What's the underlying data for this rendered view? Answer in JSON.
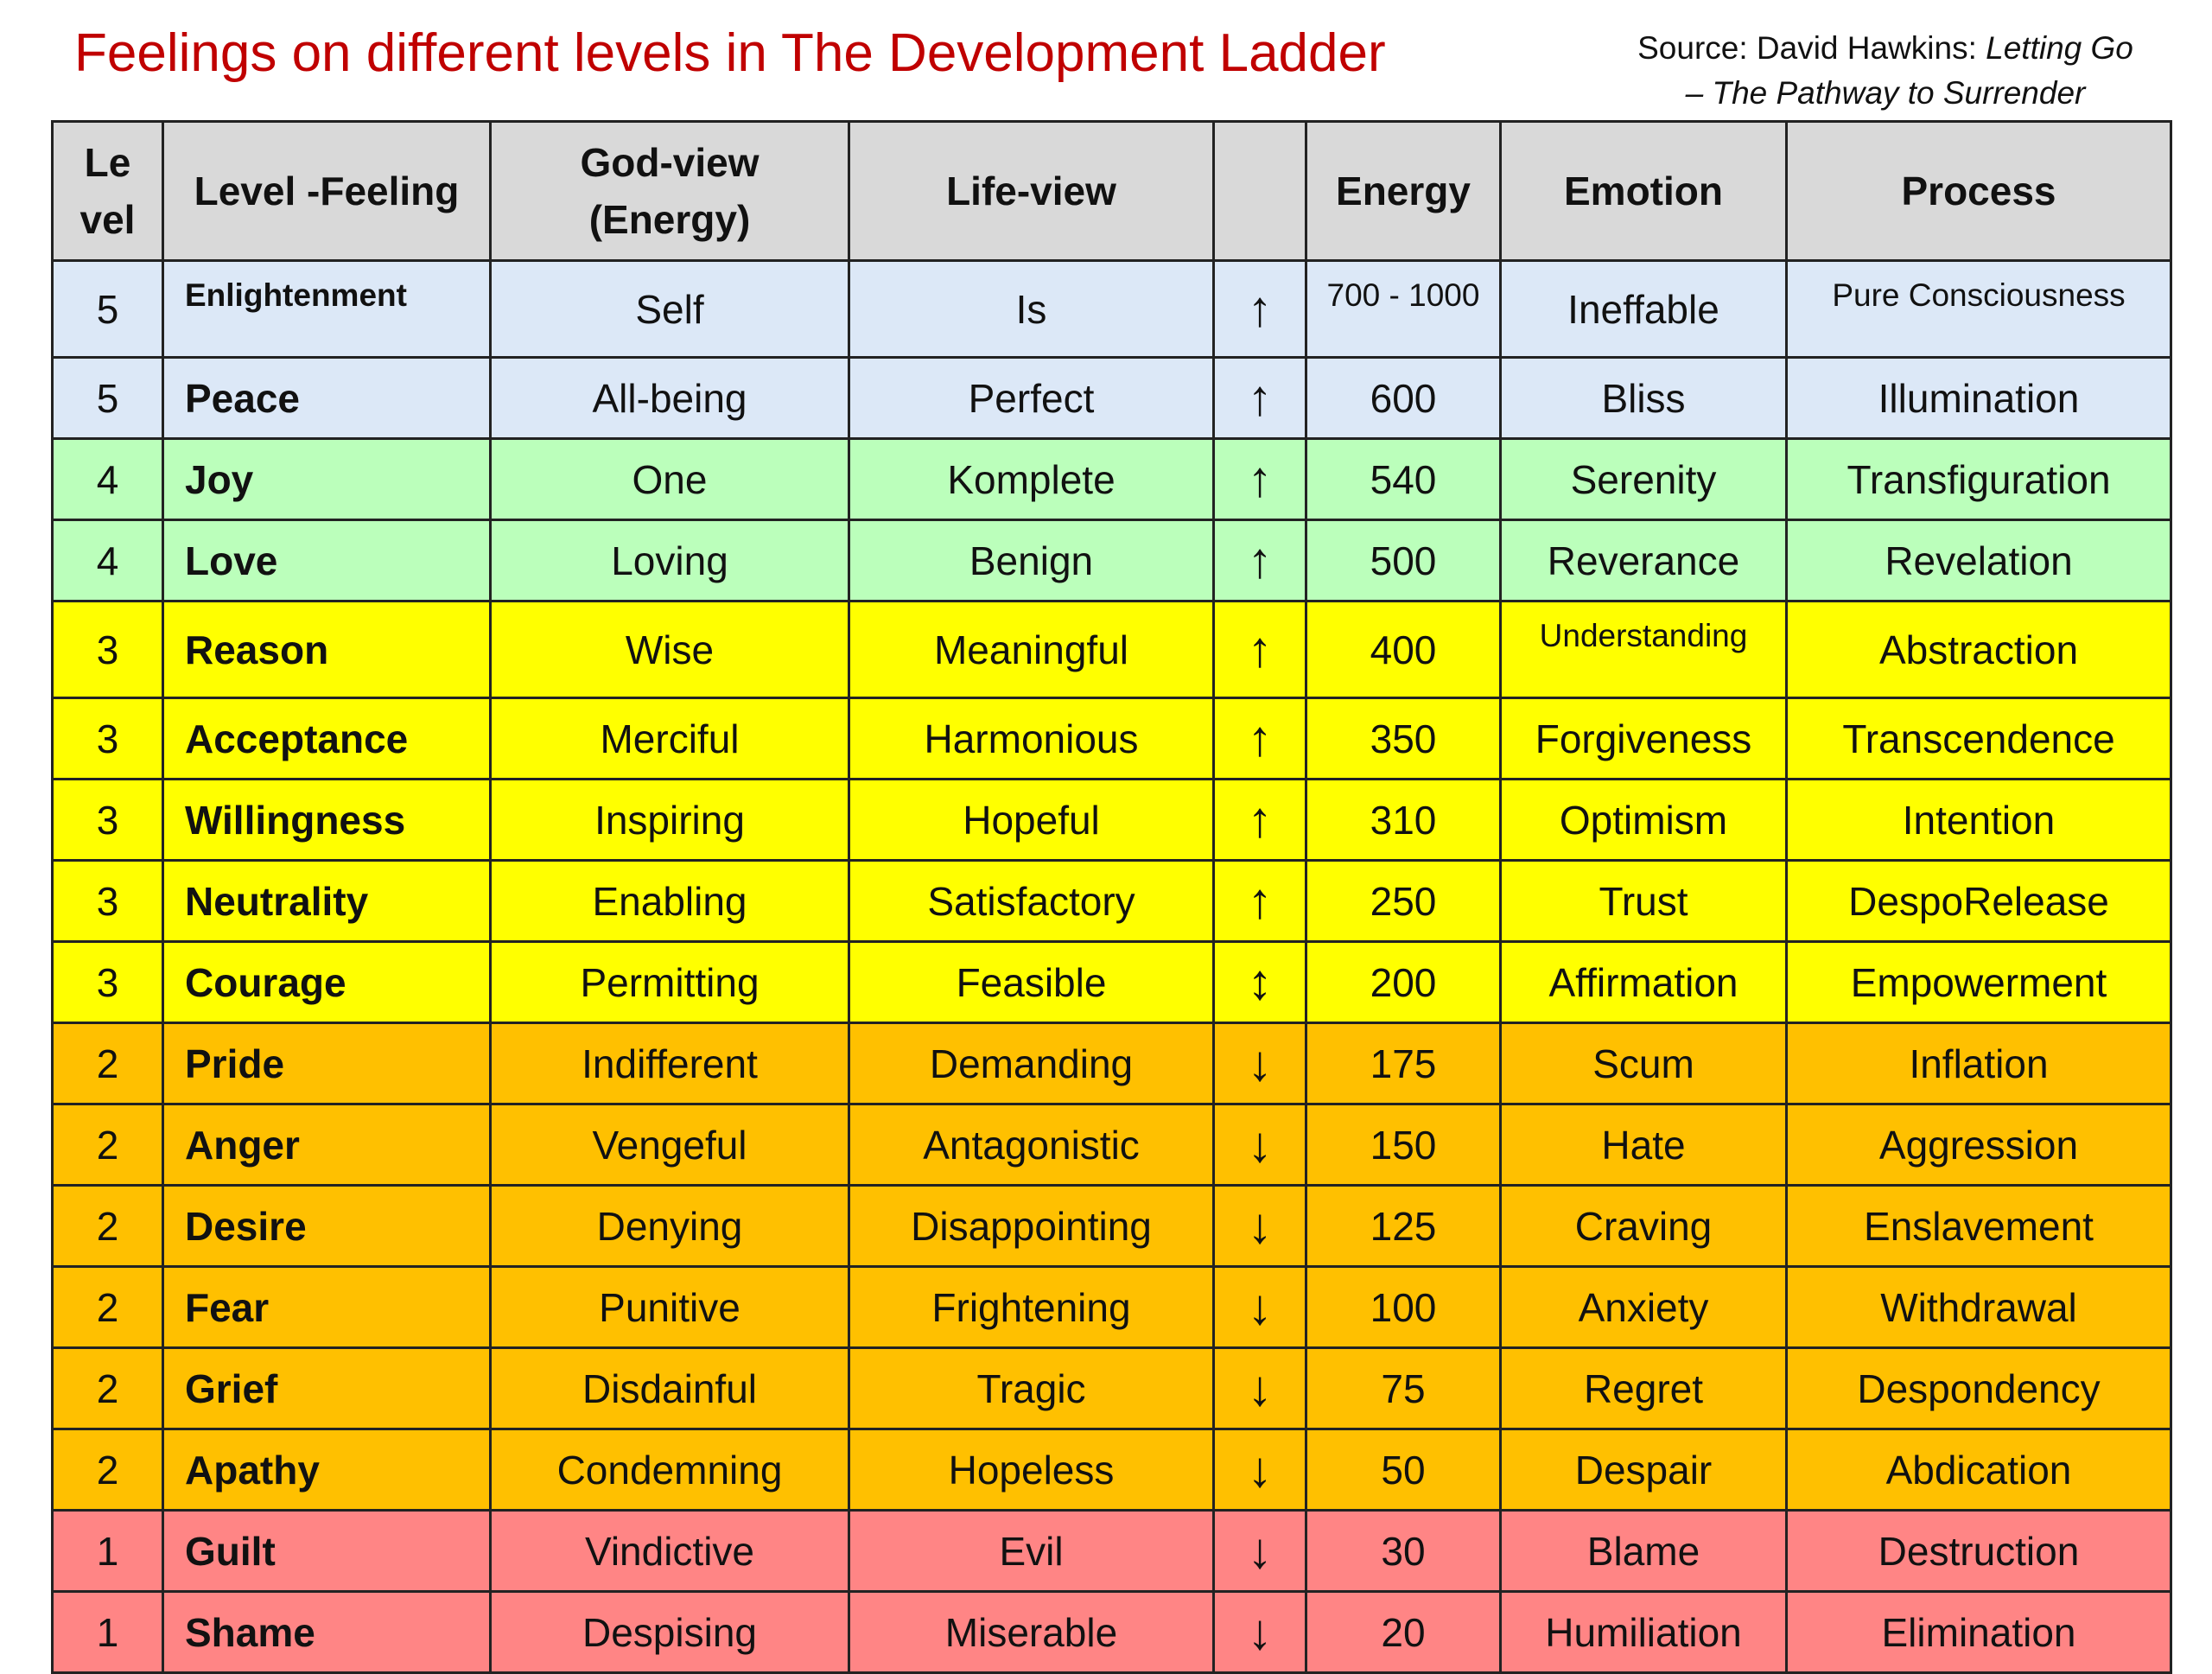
{
  "title": "Feelings on different levels in The Development Ladder",
  "source": {
    "line1": "Source: David Hawkins: ",
    "line1_italic": "Letting Go",
    "line2_italic": "– The Pathway to Surrender"
  },
  "table": {
    "header": [
      [
        "Le",
        "vel"
      ],
      [
        "Level -Feeling"
      ],
      [
        "God-view",
        "(Energy)"
      ],
      [
        "Life-view"
      ],
      null,
      [
        "Energy"
      ],
      [
        "Emotion"
      ],
      [
        "Process"
      ]
    ],
    "row_colors": {
      "5": "#dce8f7",
      "4": "#bbffbb",
      "3": "#ffff00",
      "2": "#ffc000",
      "1": "#ff8585"
    },
    "header_color": "#d9d9d9",
    "rows": [
      [
        5,
        "Enlightenment",
        "Self",
        "Is",
        "↑",
        "700 - 1000",
        "Ineffable",
        "Pure Consciousness"
      ],
      [
        5,
        "Peace",
        "All-being",
        "Perfect",
        "↑",
        600,
        "Bliss",
        "Illumination"
      ],
      [
        4,
        "Joy",
        "One",
        "Komplete",
        "↑",
        540,
        "Serenity",
        "Transfiguration"
      ],
      [
        4,
        "Love",
        "Loving",
        "Benign",
        "↑",
        500,
        "Reverance",
        "Revelation"
      ],
      [
        3,
        "Reason",
        "Wise",
        "Meaningful",
        "↑",
        400,
        "Understanding",
        "Abstraction"
      ],
      [
        3,
        "Acceptance",
        "Merciful",
        "Harmonious",
        "↑",
        350,
        "Forgiveness",
        "Transcendence"
      ],
      [
        3,
        "Willingness",
        "Inspiring",
        "Hopeful",
        "↑",
        310,
        "Optimism",
        "Intention"
      ],
      [
        3,
        "Neutrality",
        "Enabling",
        "Satisfactory",
        "↑",
        250,
        "Trust",
        "DespoRelease"
      ],
      [
        3,
        "Courage",
        "Permitting",
        "Feasible",
        "↕",
        200,
        "Affirmation",
        "Empowerment"
      ],
      [
        2,
        "Pride",
        "Indifferent",
        "Demanding",
        "↓",
        175,
        "Scum",
        "Inflation"
      ],
      [
        2,
        "Anger",
        "Vengeful",
        "Antagonistic",
        "↓",
        150,
        "Hate",
        "Aggression"
      ],
      [
        2,
        "Desire",
        "Denying",
        "Disappointing",
        "↓",
        125,
        "Craving",
        "Enslavement"
      ],
      [
        2,
        "Fear",
        "Punitive",
        "Frightening",
        "↓",
        100,
        "Anxiety",
        "Withdrawal"
      ],
      [
        2,
        "Grief",
        "Disdainful",
        "Tragic",
        "↓",
        75,
        "Regret",
        "Despondency"
      ],
      [
        2,
        "Apathy",
        "Condemning",
        "Hopeless",
        "↓",
        50,
        "Despair",
        "Abdication"
      ],
      [
        1,
        "Guilt",
        "Vindictive",
        "Evil",
        "↓",
        30,
        "Blame",
        "Destruction"
      ],
      [
        1,
        "Shame",
        "Despising",
        "Miserable",
        "↓",
        20,
        "Humiliation",
        "Elimination"
      ]
    ]
  }
}
